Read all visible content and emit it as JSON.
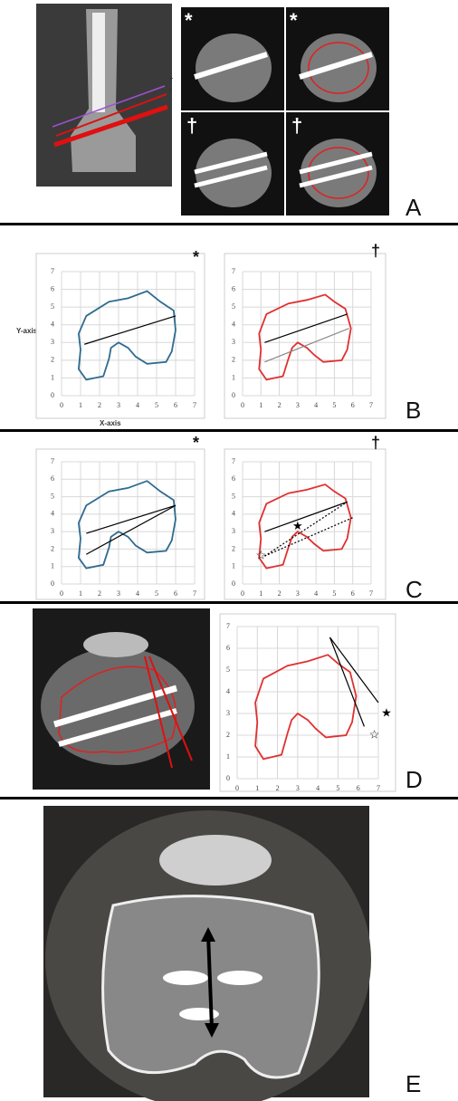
{
  "labels": [
    "A",
    "B",
    "C",
    "D",
    "E"
  ],
  "a_symbols": [
    "*",
    "*",
    "†",
    "†"
  ],
  "a_side_marks": [
    "†",
    "*"
  ],
  "axis_titles": {
    "y": "Y-axis",
    "x": "X-axis"
  },
  "plots": [
    {
      "corner_mark": "*",
      "xlim": [
        0,
        7
      ],
      "ylim": [
        0,
        7
      ],
      "xticks": [
        0,
        1,
        2,
        3,
        4,
        5,
        6,
        7
      ],
      "yticks": [
        0,
        1,
        2,
        3,
        4,
        5,
        6,
        7
      ],
      "outline_color": "#2e6b8f",
      "outline": {
        "x": [
          1.3,
          2.5,
          3.5,
          4.5,
          5.2,
          5.9,
          6.0,
          5.8,
          5.5,
          4.5,
          3.9,
          3.5,
          3.0,
          2.6,
          2.5,
          2.2,
          1.3,
          0.9,
          1.0,
          0.9
        ],
        "y": [
          4.5,
          5.3,
          5.5,
          5.9,
          5.3,
          4.8,
          3.7,
          2.5,
          1.9,
          1.8,
          2.2,
          2.7,
          3.0,
          2.7,
          2.1,
          1.1,
          0.9,
          1.5,
          2.6,
          3.5
        ]
      },
      "lines": [
        {
          "x": [
            1.2,
            6.0
          ],
          "y": [
            2.9,
            4.5
          ],
          "color": "#000",
          "dash": false
        }
      ],
      "markers": []
    },
    {
      "corner_mark": "†",
      "xlim": [
        0,
        7
      ],
      "ylim": [
        0,
        7
      ],
      "xticks": [
        0,
        1,
        2,
        3,
        4,
        5,
        6,
        7
      ],
      "yticks": [
        0,
        1,
        2,
        3,
        4,
        5,
        6,
        7
      ],
      "outline_color": "#e03030",
      "outline": {
        "x": [
          1.3,
          2.5,
          3.5,
          4.5,
          5.0,
          5.6,
          5.9,
          5.7,
          5.4,
          4.4,
          3.9,
          3.5,
          3.0,
          2.7,
          2.5,
          2.2,
          1.3,
          0.9,
          1.0,
          0.9
        ],
        "y": [
          4.6,
          5.2,
          5.4,
          5.7,
          5.3,
          4.9,
          3.8,
          2.6,
          2.0,
          1.9,
          2.3,
          2.7,
          3.0,
          2.7,
          2.1,
          1.1,
          0.9,
          1.5,
          2.6,
          3.5
        ]
      },
      "lines": [
        {
          "x": [
            1.2,
            5.7
          ],
          "y": [
            3.0,
            4.6
          ],
          "color": "#000",
          "dash": false
        },
        {
          "x": [
            1.2,
            5.8
          ],
          "y": [
            1.9,
            3.8
          ],
          "color": "#888",
          "dash": false
        }
      ],
      "markers": []
    },
    {
      "corner_mark": "*",
      "xlim": [
        0,
        7
      ],
      "ylim": [
        0,
        7
      ],
      "xticks": [
        0,
        1,
        2,
        3,
        4,
        5,
        6,
        7
      ],
      "yticks": [
        0,
        1,
        2,
        3,
        4,
        5,
        6,
        7
      ],
      "outline_color": "#2e6b8f",
      "outline": {
        "x": [
          1.3,
          2.5,
          3.5,
          4.5,
          5.2,
          5.9,
          6.0,
          5.8,
          5.5,
          4.5,
          3.9,
          3.5,
          3.0,
          2.6,
          2.5,
          2.2,
          1.3,
          0.9,
          1.0,
          0.9
        ],
        "y": [
          4.5,
          5.3,
          5.5,
          5.9,
          5.3,
          4.8,
          3.7,
          2.5,
          1.9,
          1.8,
          2.2,
          2.7,
          3.0,
          2.7,
          2.1,
          1.1,
          0.9,
          1.5,
          2.6,
          3.5
        ]
      },
      "lines": [
        {
          "x": [
            1.3,
            6.0
          ],
          "y": [
            2.9,
            4.5
          ],
          "color": "#000",
          "dash": false
        },
        {
          "x": [
            1.3,
            6.0
          ],
          "y": [
            1.7,
            4.5
          ],
          "color": "#000",
          "dash": false
        }
      ],
      "markers": []
    },
    {
      "corner_mark": "†",
      "xlim": [
        0,
        7
      ],
      "ylim": [
        0,
        7
      ],
      "xticks": [
        0,
        1,
        2,
        3,
        4,
        5,
        6,
        7
      ],
      "yticks": [
        0,
        1,
        2,
        3,
        4,
        5,
        6,
        7
      ],
      "outline_color": "#e03030",
      "outline": {
        "x": [
          1.3,
          2.5,
          3.5,
          4.5,
          5.0,
          5.6,
          5.9,
          5.7,
          5.4,
          4.4,
          3.9,
          3.5,
          3.0,
          2.7,
          2.5,
          2.2,
          1.3,
          0.9,
          1.0,
          0.9
        ],
        "y": [
          4.6,
          5.2,
          5.4,
          5.7,
          5.3,
          4.9,
          3.8,
          2.6,
          2.0,
          1.9,
          2.3,
          2.7,
          3.0,
          2.7,
          2.1,
          1.1,
          0.9,
          1.5,
          2.6,
          3.5
        ]
      },
      "lines": [
        {
          "x": [
            1.2,
            5.7
          ],
          "y": [
            3.0,
            4.7
          ],
          "color": "#000",
          "dash": false
        },
        {
          "x": [
            1.2,
            5.7
          ],
          "y": [
            1.6,
            4.7
          ],
          "color": "#000",
          "dash": true
        },
        {
          "x": [
            1.2,
            6.0
          ],
          "y": [
            1.6,
            3.8
          ],
          "color": "#000",
          "dash": true
        }
      ],
      "markers": [
        {
          "symbol": "★",
          "x": 3.0,
          "y": 3.3
        },
        {
          "symbol": "☆",
          "x": 1.0,
          "y": 1.6
        }
      ]
    },
    {
      "xlim": [
        0,
        7
      ],
      "ylim": [
        0,
        7
      ],
      "xticks": [
        0,
        1,
        2,
        3,
        4,
        5,
        6,
        7
      ],
      "yticks": [
        0,
        1,
        2,
        3,
        4,
        5,
        6,
        7
      ],
      "outline_color": "#e03030",
      "outline": {
        "x": [
          1.3,
          2.5,
          3.5,
          4.5,
          5.0,
          5.6,
          5.9,
          5.7,
          5.4,
          4.4,
          3.9,
          3.5,
          3.0,
          2.7,
          2.5,
          2.2,
          1.3,
          0.9,
          1.0,
          0.9
        ],
        "y": [
          4.6,
          5.2,
          5.4,
          5.7,
          5.3,
          4.9,
          3.8,
          2.6,
          2.0,
          1.9,
          2.3,
          2.7,
          3.0,
          2.7,
          2.1,
          1.1,
          0.9,
          1.5,
          2.6,
          3.5
        ]
      },
      "lines": [
        {
          "x": [
            4.6,
            6.3
          ],
          "y": [
            6.5,
            2.4
          ],
          "color": "#000",
          "dash": false
        },
        {
          "x": [
            4.6,
            7.0
          ],
          "y": [
            6.5,
            3.5
          ],
          "color": "#000",
          "dash": false
        }
      ],
      "markers": [
        {
          "symbol": "★",
          "x": 7.4,
          "y": 3.0
        },
        {
          "symbol": "☆",
          "x": 6.8,
          "y": 2.0
        }
      ]
    }
  ]
}
